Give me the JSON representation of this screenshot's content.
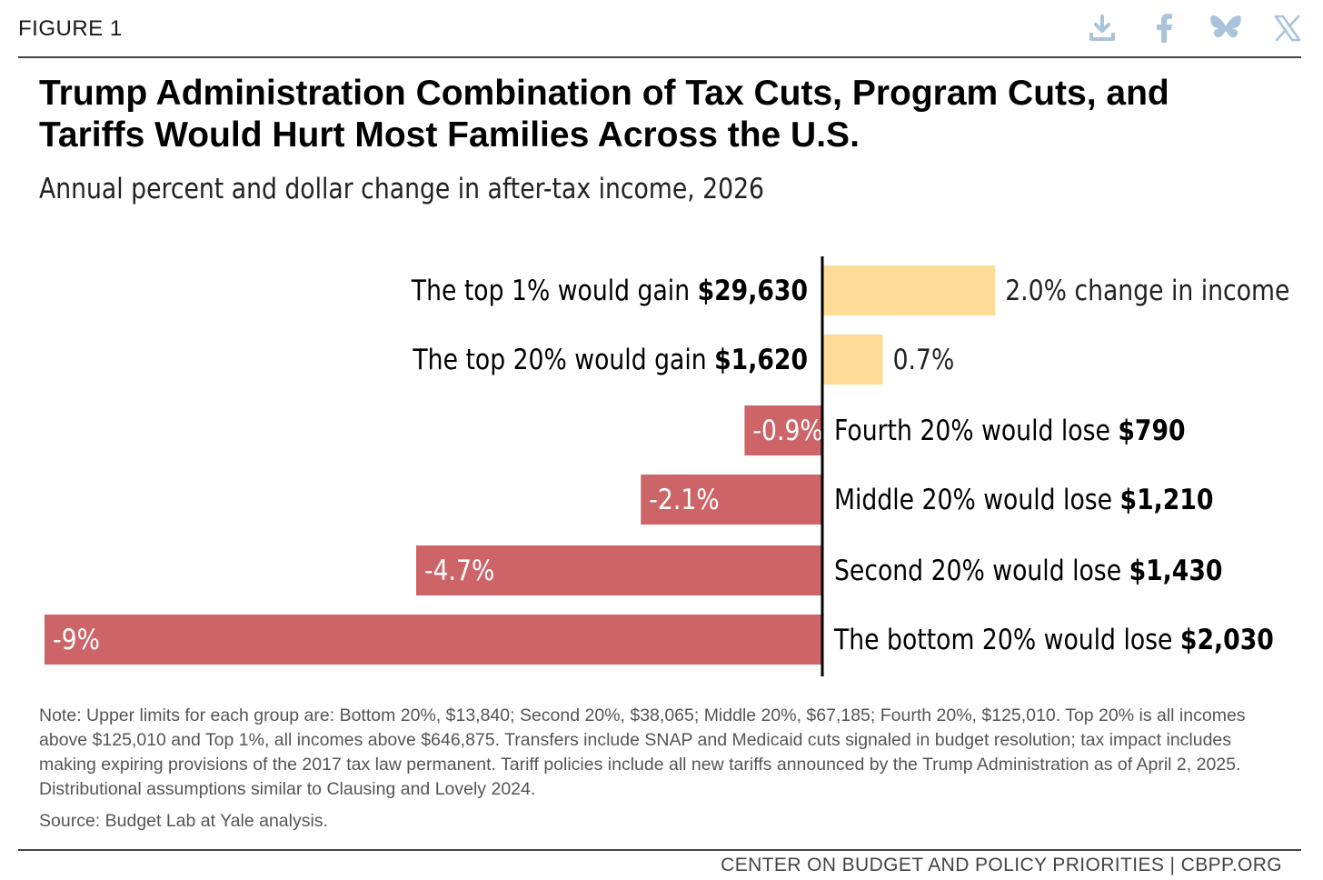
{
  "header": {
    "figure_label": "FIGURE 1",
    "icons": [
      "download-icon",
      "facebook-icon",
      "bluesky-icon",
      "x-icon"
    ]
  },
  "title_lines": [
    "Trump Administration Combination of Tax Cuts, Program Cuts, and",
    "Tariffs Would Hurt Most Families Across the U.S."
  ],
  "subtitle": "Annual percent and dollar change in after-tax income, 2026",
  "chart_data": {
    "type": "bar",
    "orientation": "horizontal",
    "categories": [
      "Top 1%",
      "Top 20%",
      "Fourth 20%",
      "Middle 20%",
      "Second 20%",
      "Bottom 20%"
    ],
    "values": [
      2.0,
      0.7,
      -0.9,
      -2.1,
      -4.7,
      -9
    ],
    "value_labels": [
      "2.0% change in income",
      "0.7%",
      "-0.9%",
      "-2.1%",
      "-4.7%",
      "-9%"
    ],
    "descriptions": [
      {
        "text": "The top 1% would gain ",
        "amount": "$29,630"
      },
      {
        "text": "The top 20% would gain ",
        "amount": "$1,620"
      },
      {
        "text": "Fourth 20% would lose ",
        "amount": "$790"
      },
      {
        "text": "Middle 20% would lose ",
        "amount": "$1,210"
      },
      {
        "text": "Second 20% would lose ",
        "amount": "$1,430"
      },
      {
        "text": "The bottom 20% would lose ",
        "amount": "$2,030"
      }
    ],
    "colors": {
      "positive": "#FDDC97",
      "negative": "#CD6468",
      "axis": "#000000"
    },
    "xlim": [
      -9,
      2.0
    ]
  },
  "note": "Note: Upper limits for each group are: Bottom 20%, $13,840; Second 20%, $38,065; Middle 20%, $67,185; Fourth 20%, $125,010. Top 20% is all incomes above $125,010 and Top 1%, all incomes above $646,875. Transfers include SNAP and Medicaid cuts signaled in budget resolution; tax impact includes making expiring provisions of the 2017 tax law permanent. Tariff policies include all new tariffs announced by the Trump Administration as of April 2, 2025. Distributional assumptions similar to Clausing and Lovely 2024.",
  "source": "Source: Budget Lab at Yale analysis.",
  "footer": "CENTER ON BUDGET AND POLICY PRIORITIES | CBPP.ORG"
}
